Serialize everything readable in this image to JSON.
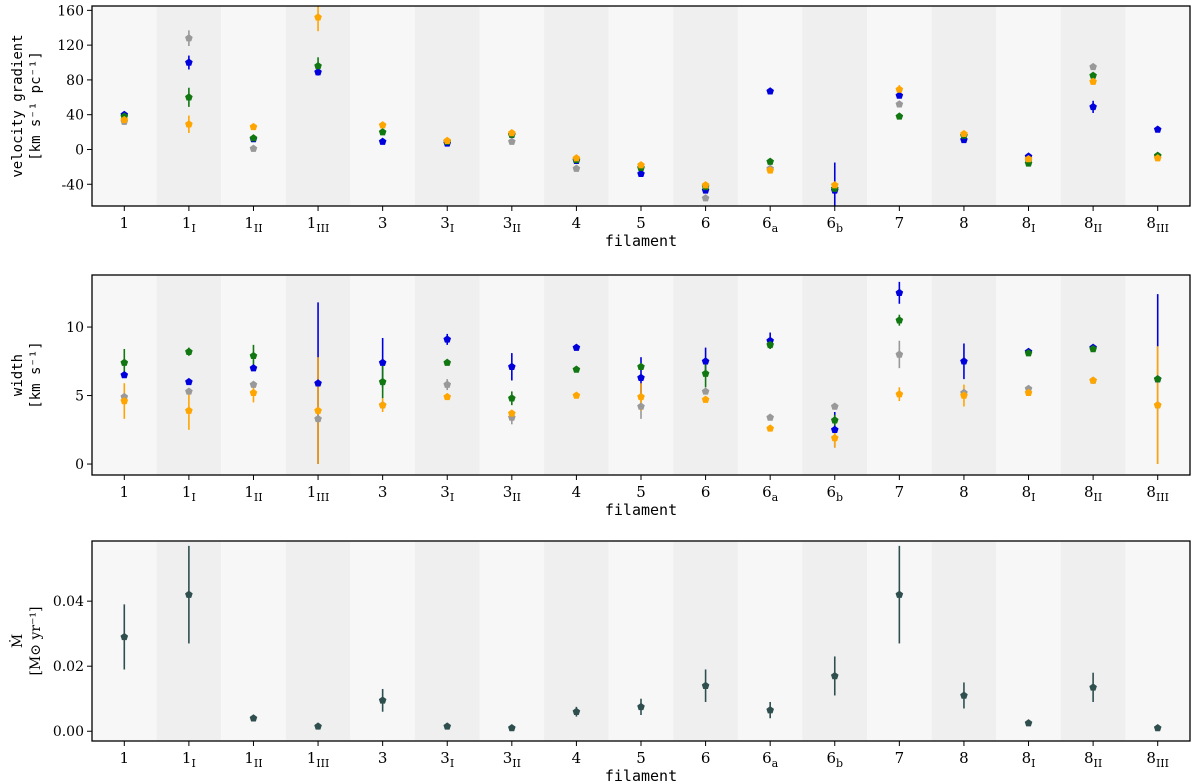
{
  "chart_data": [
    {
      "type": "scatter",
      "id": "velocity",
      "xlabel": "filament",
      "ylabel_lines": [
        "velocity gradient",
        "[km s⁻¹ pc⁻¹]"
      ],
      "ylim": [
        -65,
        165
      ],
      "yticks": [
        -40,
        0,
        40,
        80,
        120,
        160
      ],
      "categories": [
        {
          "base": "1",
          "sub": ""
        },
        {
          "base": "1",
          "sub": "I"
        },
        {
          "base": "1",
          "sub": "II"
        },
        {
          "base": "1",
          "sub": "III"
        },
        {
          "base": "3",
          "sub": ""
        },
        {
          "base": "3",
          "sub": "I"
        },
        {
          "base": "3",
          "sub": "II"
        },
        {
          "base": "4",
          "sub": ""
        },
        {
          "base": "5",
          "sub": ""
        },
        {
          "base": "6",
          "sub": ""
        },
        {
          "base": "6",
          "sub": "a"
        },
        {
          "base": "6",
          "sub": "b"
        },
        {
          "base": "7",
          "sub": ""
        },
        {
          "base": "8",
          "sub": ""
        },
        {
          "base": "8",
          "sub": "I"
        },
        {
          "base": "8",
          "sub": "II"
        },
        {
          "base": "8",
          "sub": "III"
        }
      ],
      "series": [
        {
          "name": "grey",
          "color": "#999999",
          "values": [
            32,
            128,
            1,
            null,
            null,
            null,
            9,
            -22,
            -22,
            -56,
            -22,
            -45,
            52,
            16,
            -13,
            95,
            -8
          ],
          "errors": [
            0,
            9,
            0,
            0,
            0,
            0,
            0,
            0,
            0,
            0,
            0,
            0,
            0,
            0,
            0,
            0,
            0
          ]
        },
        {
          "name": "blue",
          "color": "#0000dd",
          "values": [
            40,
            100,
            12,
            89,
            9,
            7,
            17,
            -13,
            -28,
            -47,
            67,
            -47,
            62,
            11,
            -8,
            49,
            23
          ],
          "errors": [
            0,
            8,
            0,
            4,
            0,
            0,
            0,
            0,
            0,
            0,
            0,
            32,
            0,
            0,
            0,
            7,
            0
          ]
        },
        {
          "name": "green",
          "color": "#117711",
          "values": [
            38,
            60,
            13,
            96,
            20,
            9,
            17,
            -12,
            -21,
            -43,
            -14,
            -45,
            38,
            16,
            -16,
            85,
            -7
          ],
          "errors": [
            0,
            11,
            0,
            10,
            0,
            0,
            0,
            0,
            0,
            0,
            0,
            0,
            0,
            0,
            0,
            0,
            0
          ]
        },
        {
          "name": "orange",
          "color": "#ffa500",
          "values": [
            34,
            29,
            26,
            152,
            28,
            10,
            19,
            -10,
            -18,
            -41,
            -24,
            -41,
            69,
            18,
            -11,
            78,
            -10
          ],
          "errors": [
            0,
            10,
            0,
            16,
            0,
            0,
            0,
            0,
            0,
            0,
            0,
            0,
            5,
            0,
            0,
            0,
            0
          ]
        }
      ]
    },
    {
      "type": "scatter",
      "id": "width",
      "xlabel": "filament",
      "ylabel_lines": [
        "width",
        "[km s⁻¹]"
      ],
      "ylim": [
        -0.8,
        13.8
      ],
      "yticks": [
        0,
        5,
        10
      ],
      "series": [
        {
          "name": "grey",
          "color": "#999999",
          "values": [
            4.9,
            5.3,
            5.8,
            3.3,
            4.3,
            5.8,
            3.4,
            null,
            4.2,
            5.3,
            3.4,
            4.2,
            8.0,
            5.2,
            5.5,
            6.1,
            4.3
          ],
          "errors": [
            0,
            0,
            0,
            0,
            0,
            0.4,
            0.5,
            0,
            0.9,
            0,
            0,
            0,
            1.0,
            0,
            0,
            0,
            0
          ]
        },
        {
          "name": "blue",
          "color": "#0000dd",
          "values": [
            6.5,
            6.0,
            7.0,
            5.9,
            7.4,
            9.1,
            7.1,
            8.5,
            6.3,
            7.5,
            9.0,
            2.5,
            12.5,
            7.5,
            8.2,
            8.5,
            6.2
          ],
          "errors": [
            0,
            0,
            0,
            5.9,
            1.8,
            0.4,
            1.0,
            0,
            1.5,
            1.0,
            0.6,
            1.3,
            0.8,
            1.3,
            0,
            0,
            6.2
          ]
        },
        {
          "name": "green",
          "color": "#117711",
          "values": [
            7.4,
            8.2,
            7.9,
            null,
            6.0,
            7.4,
            4.8,
            6.9,
            7.1,
            6.6,
            8.7,
            3.2,
            10.5,
            null,
            8.1,
            8.4,
            6.2
          ],
          "errors": [
            1.0,
            0.3,
            0.8,
            0,
            1.2,
            0,
            0.5,
            0,
            0,
            1.0,
            0.3,
            0.4,
            0.4,
            0,
            0,
            0,
            0
          ]
        },
        {
          "name": "orange",
          "color": "#ffa500",
          "values": [
            4.6,
            3.9,
            5.2,
            3.9,
            4.3,
            4.9,
            3.7,
            5.0,
            4.9,
            4.7,
            2.6,
            1.9,
            5.1,
            5.0,
            5.2,
            6.1,
            4.3
          ],
          "errors": [
            1.3,
            1.4,
            0.7,
            3.9,
            0.5,
            0,
            0,
            0,
            1.0,
            0,
            0,
            0.7,
            0.5,
            0.8,
            0,
            0,
            4.3
          ]
        }
      ]
    },
    {
      "type": "scatter",
      "id": "mdot",
      "xlabel": "filament",
      "ylabel_lines": [
        "Ṁ",
        "[M⊙ yr⁻¹]"
      ],
      "ylim": [
        -0.003,
        0.0585
      ],
      "yticks": [
        0.0,
        0.02,
        0.04
      ],
      "ytick_labels": [
        "0.00",
        "0.02",
        "0.04"
      ],
      "series": [
        {
          "name": "dark",
          "color": "#2f4f4f",
          "values": [
            0.029,
            0.042,
            0.004,
            0.0015,
            0.0095,
            0.0015,
            0.001,
            0.006,
            0.0075,
            0.014,
            0.0065,
            0.017,
            0.042,
            0.011,
            0.0025,
            0.0135,
            0.001
          ],
          "errors": [
            0.01,
            0.015,
            0,
            0,
            0.0035,
            0,
            0,
            0.0015,
            0.0025,
            0.005,
            0.0025,
            0.006,
            0.015,
            0.004,
            0,
            0.0045,
            0
          ]
        }
      ]
    }
  ]
}
